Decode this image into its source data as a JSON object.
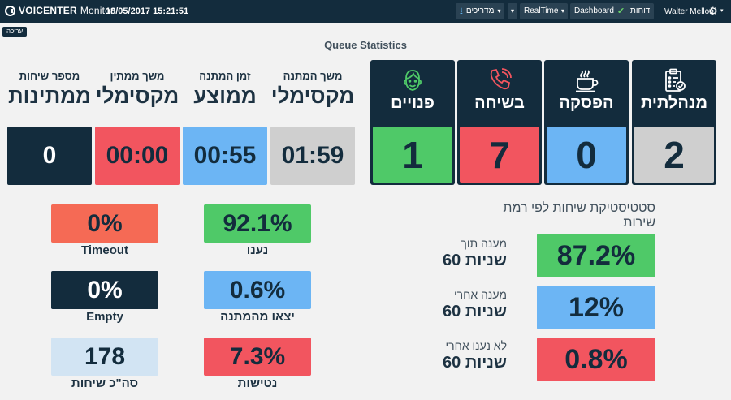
{
  "header": {
    "brand": "VOICENTER",
    "product": "Monitor",
    "datetime": "18/05/2017 15:21:51",
    "nav": {
      "guides": "מדריכים",
      "realtime": "RealTime",
      "dashboard": "Dashboard",
      "reports": "דוחות"
    },
    "user": "Walter Mellon"
  },
  "toolbar": {
    "edit_label": "עריכה"
  },
  "page_title": "Queue Statistics",
  "agent_status": [
    {
      "label": "מנהלתית",
      "value": "2",
      "icon": "clipboard-icon",
      "color": "#cfcfcf"
    },
    {
      "label": "הפסקה",
      "value": "0",
      "icon": "coffee-icon",
      "color": "#6cb5f4"
    },
    {
      "label": "בשיחה",
      "value": "7",
      "icon": "phone-icon",
      "color": "#f2555f"
    },
    {
      "label": "פנויים",
      "value": "1",
      "icon": "face-icon",
      "color": "#4fc968"
    }
  ],
  "queue_metrics": [
    {
      "label_small": "משך המתנה",
      "label_big": "מקסימלי",
      "value": "01:59",
      "color": "#cfcfcf"
    },
    {
      "label_small": "זמן המתנה",
      "label_big": "ממוצע",
      "value": "00:55",
      "color": "#6cb5f4"
    },
    {
      "label_small": "משך ממתין",
      "label_big": "מקסימלי",
      "value": "00:00",
      "color": "#f2555f"
    },
    {
      "label_small": "מספר שיחות",
      "label_big": "ממתינות",
      "value": "0",
      "color": "#132c3d"
    }
  ],
  "call_stats": {
    "answered": {
      "label": "נענו",
      "value": "92.1%",
      "color": "#4fc968"
    },
    "left_queue": {
      "label": "יצאו מהמתנה",
      "value": "0.6%",
      "color": "#6cb5f4"
    },
    "abandoned": {
      "label": "נטישות",
      "value": "7.3%",
      "color": "#f2555f"
    },
    "timeout": {
      "label": "Timeout",
      "value": "0%",
      "color": "#f56a55"
    },
    "empty": {
      "label": "Empty",
      "value": "0%",
      "color": "#132c3d"
    },
    "total": {
      "label": "סה\"כ שיחות",
      "value": "178",
      "color": "#d2e4f3"
    }
  },
  "service_level": {
    "title": "סטטיסטיקת שיחות לפי רמת שירות",
    "rows": [
      {
        "line1": "מענה תוך",
        "line2": "60 שניות",
        "value": "87.2%",
        "color": "#4fc968"
      },
      {
        "line1": "מענה אחרי",
        "line2": "60 שניות",
        "value": "12%",
        "color": "#6cb5f4"
      },
      {
        "line1": "לא נענו אחרי",
        "line2": "60 שניות",
        "value": "0.8%",
        "color": "#f2555f"
      }
    ]
  }
}
